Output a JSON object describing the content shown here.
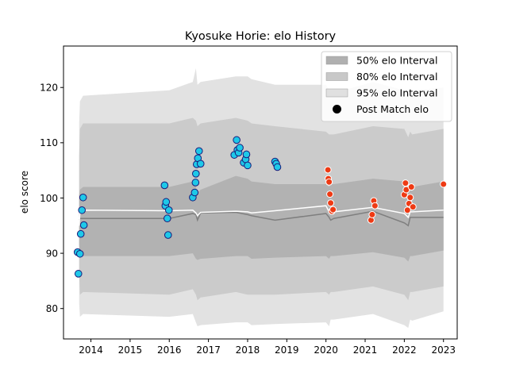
{
  "chart_data": {
    "type": "scatter",
    "title": "Kyosuke Horie: elo History",
    "xlabel": "",
    "ylabel": "elo score",
    "xlim": [
      2013.3,
      2023.35
    ],
    "ylim": [
      74.5,
      127.5
    ],
    "x_ticks": [
      2014,
      2015,
      2016,
      2017,
      2018,
      2019,
      2020,
      2021,
      2022,
      2023
    ],
    "y_ticks": [
      80,
      90,
      100,
      110,
      120
    ],
    "grid": false,
    "legend_position": "top-right",
    "legend": [
      {
        "label": "50% elo Interval",
        "kind": "band",
        "color": "#b0b0b0"
      },
      {
        "label": "80% elo Interval",
        "kind": "band",
        "color": "#c8c8c8"
      },
      {
        "label": "95% elo Interval",
        "kind": "band",
        "color": "#e0e0e0"
      },
      {
        "label": "Post Match elo",
        "kind": "point",
        "color": "#000000"
      }
    ],
    "colors": {
      "band_50": "#b2b2b2",
      "band_80": "#cbcbcb",
      "band_95": "#e2e2e2",
      "mean_line": "#ffffff",
      "median_line": "#7f7f7f",
      "early_point_fill": "#1ec8e8",
      "early_point_edge": "#1a1a7a",
      "late_point_fill": "#ee3a14",
      "late_point_edge": "#ffffff"
    },
    "bands": {
      "x": [
        2013.7,
        2013.72,
        2013.8,
        2016.0,
        2016.6,
        2016.68,
        2016.72,
        2016.8,
        2017.7,
        2018.0,
        2018.1,
        2018.7,
        2020.0,
        2020.08,
        2020.12,
        2020.2,
        2021.2,
        2022.0,
        2022.1,
        2022.15,
        2022.2,
        2023.0
      ],
      "p95_lo": [
        81.0,
        78.5,
        79.0,
        78.5,
        79.0,
        77.5,
        76.8,
        77.0,
        77.5,
        77.5,
        77.0,
        77.2,
        77.5,
        76.8,
        78.0,
        78.0,
        79.0,
        77.0,
        76.5,
        78.0,
        77.8,
        79.5
      ],
      "p80_lo": [
        86.5,
        82.5,
        83.0,
        82.5,
        83.5,
        82.5,
        81.5,
        82.0,
        83.0,
        82.5,
        82.5,
        82.5,
        83.0,
        82.5,
        83.0,
        83.0,
        84.0,
        82.5,
        81.5,
        83.0,
        83.0,
        84.0
      ],
      "p50_lo": [
        91.5,
        89.5,
        89.5,
        89.5,
        90.0,
        89.0,
        88.8,
        89.0,
        89.5,
        89.5,
        89.0,
        89.2,
        89.5,
        89.0,
        89.5,
        89.5,
        90.2,
        89.2,
        88.5,
        89.5,
        89.5,
        90.5
      ],
      "p50_hi": [
        100.5,
        101.5,
        102.0,
        102.0,
        103.0,
        102.0,
        101.0,
        101.5,
        104.0,
        103.5,
        103.0,
        102.5,
        102.5,
        102.0,
        102.5,
        102.5,
        103.5,
        103.0,
        101.5,
        102.5,
        102.0,
        103.0
      ],
      "p80_hi": [
        107.5,
        112.5,
        113.5,
        113.5,
        114.5,
        114.0,
        113.0,
        113.5,
        114.5,
        114.0,
        113.5,
        113.0,
        112.0,
        111.5,
        111.5,
        111.5,
        113.0,
        112.5,
        111.0,
        112.0,
        111.5,
        112.5
      ],
      "p95_hi": [
        113.5,
        117.5,
        118.5,
        119.5,
        121.0,
        123.5,
        120.5,
        121.0,
        122.0,
        122.0,
        121.5,
        120.5,
        120.5,
        119.5,
        119.5,
        119.0,
        121.0,
        119.5,
        118.5,
        119.5,
        119.5,
        120.0
      ],
      "mean": [
        95.0,
        97.5,
        97.8,
        97.7,
        97.8,
        97.3,
        96.8,
        97.4,
        97.6,
        97.5,
        97.3,
        97.7,
        98.6,
        97.5,
        97.3,
        97.5,
        98.3,
        97.2,
        96.5,
        97.5,
        97.5,
        97.8
      ],
      "median": [
        96.0,
        96.3,
        96.3,
        96.3,
        97.2,
        97.0,
        96.0,
        97.3,
        97.4,
        97.0,
        96.8,
        96.0,
        97.2,
        96.5,
        96.0,
        96.3,
        97.6,
        95.5,
        95.0,
        96.5,
        96.5,
        96.5
      ]
    },
    "series": [
      {
        "name": "Post Match elo",
        "style": "early",
        "x": [
          2013.66,
          2013.68,
          2013.72,
          2013.74,
          2013.77,
          2013.8,
          2013.82,
          2015.88,
          2015.9,
          2015.92,
          2015.95,
          2015.97,
          2015.99,
          2016.6,
          2016.65,
          2016.67,
          2016.68,
          2016.7,
          2016.73,
          2016.76,
          2016.8,
          2017.66,
          2017.72,
          2017.74,
          2017.77,
          2017.8,
          2017.9,
          2017.95,
          2017.97,
          2018.0,
          2018.7,
          2018.73,
          2018.76
        ],
        "y": [
          90.2,
          86.3,
          89.9,
          93.5,
          97.8,
          100.1,
          95.1,
          102.3,
          98.6,
          99.3,
          96.3,
          93.3,
          97.8,
          100.1,
          101.0,
          102.8,
          104.4,
          106.1,
          107.2,
          108.5,
          106.2,
          107.8,
          110.5,
          108.7,
          108.2,
          109.1,
          106.4,
          107.0,
          107.9,
          105.9,
          106.6,
          106.2,
          105.6
        ]
      },
      {
        "name": "Post Match elo",
        "style": "late",
        "x": [
          2020.05,
          2020.06,
          2020.08,
          2020.1,
          2020.12,
          2020.15,
          2020.18,
          2021.15,
          2021.18,
          2021.22,
          2021.25,
          2022.0,
          2022.03,
          2022.05,
          2022.08,
          2022.12,
          2022.15,
          2022.18,
          2022.22,
          2023.0
        ],
        "y": [
          105.1,
          103.5,
          102.9,
          100.7,
          99.1,
          97.6,
          97.9,
          96.0,
          97.0,
          99.5,
          98.6,
          100.6,
          102.7,
          101.5,
          97.8,
          99.0,
          100.1,
          102.0,
          98.4,
          102.5
        ]
      }
    ]
  }
}
